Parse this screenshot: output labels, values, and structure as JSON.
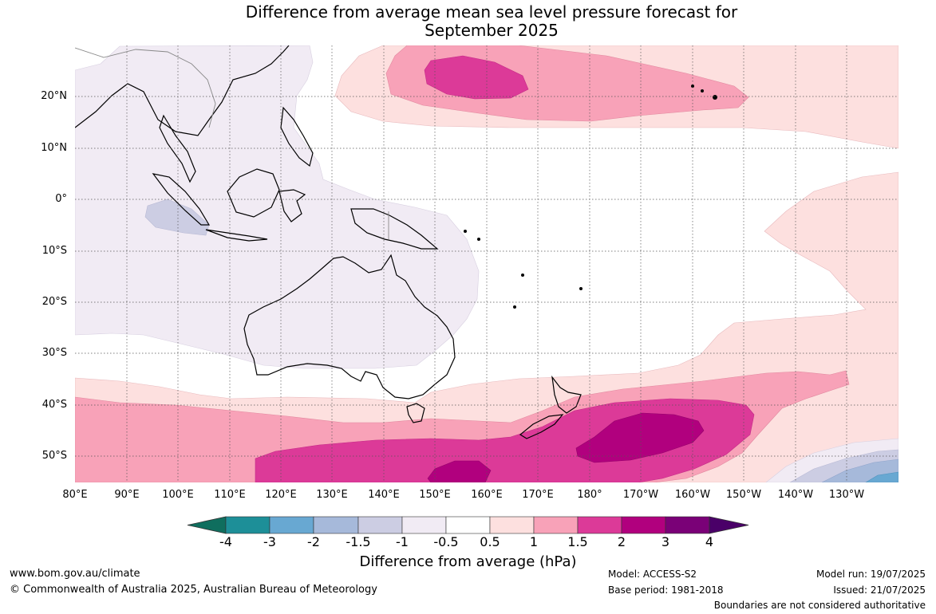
{
  "title": {
    "line1": "Difference from average mean sea level pressure forecast for",
    "line2": "September 2025"
  },
  "map": {
    "region": "Indian Ocean, Australia and Pacific Ocean",
    "lat_labels": [
      "20°N",
      "10°N",
      "0°",
      "10°S",
      "20°S",
      "30°S",
      "40°S",
      "50°S"
    ],
    "lon_labels": [
      "80°E",
      "90°E",
      "100°E",
      "110°E",
      "120°E",
      "130°E",
      "140°E",
      "150°E",
      "160°E",
      "170°E",
      "180°",
      "170°W",
      "160°W",
      "150°W",
      "140°W",
      "130°W"
    ],
    "gridlines": "dotted"
  },
  "colorbar": {
    "ticks": [
      "-4",
      "-3",
      "-2",
      "-1.5",
      "-1",
      "-0.5",
      "0.5",
      "1",
      "1.5",
      "2",
      "3",
      "4"
    ],
    "colors": [
      "#0f6e5e",
      "#1d8f98",
      "#68a8d2",
      "#a6b9da",
      "#cccde3",
      "#f1ebf4",
      "#ffffff",
      "#fde0df",
      "#f8a2b8",
      "#dc3a98",
      "#b1007e",
      "#7a0177",
      "#4a0068"
    ],
    "label": "Difference from average (hPa)"
  },
  "footer": {
    "website": "www.bom.gov.au/climate",
    "copyright": "© Commonwealth of Australia 2025, Australian Bureau of Meteorology",
    "model": "Model: ACCESS-S2",
    "base_period": "Base period: 1981-2018",
    "model_run": "Model run: 19/07/2025",
    "issued": "Issued: 21/07/2025",
    "disclaimer": "Boundaries are not considered authoritative"
  }
}
